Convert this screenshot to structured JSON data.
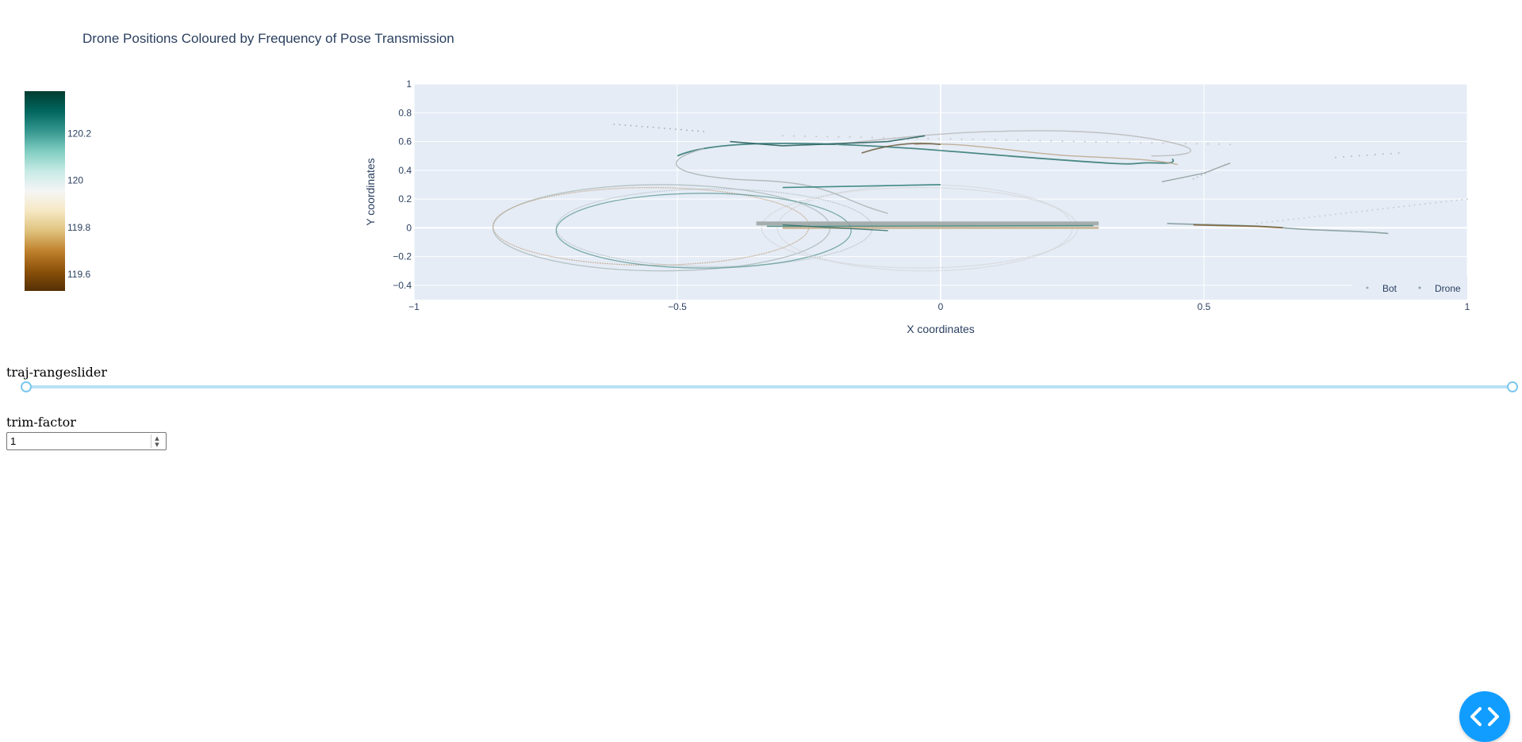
{
  "figure": {
    "title": "Drone Positions Coloured by Frequency of Pose Transmission"
  },
  "colorbar": {
    "ticks": [
      "120.2",
      "120",
      "119.8",
      "119.6"
    ],
    "tick_values": [
      120.2,
      120.0,
      119.8,
      119.6
    ],
    "range": [
      119.53,
      120.38
    ],
    "colors": [
      "#003c30",
      "#01665e",
      "#35978f",
      "#80cdc1",
      "#c7eae5",
      "#f5f5f5",
      "#f6e8c3",
      "#dfc27d",
      "#bf812d",
      "#8c510a",
      "#543005"
    ]
  },
  "chart_data": {
    "type": "scatter",
    "title": "Drone Positions Coloured by Frequency of Pose Transmission",
    "xlabel": "X coordinates",
    "ylabel": "Y coordinates",
    "xlim": [
      -1,
      1
    ],
    "ylim": [
      -0.5,
      1
    ],
    "x_ticks": [
      "−1",
      "−0.5",
      "0",
      "0.5",
      "1"
    ],
    "x_tick_values": [
      -1,
      -0.5,
      0,
      0.5,
      1
    ],
    "y_ticks": [
      "1",
      "0.8",
      "0.6",
      "0.4",
      "0.2",
      "0",
      "−0.2",
      "−0.4"
    ],
    "y_tick_values": [
      1,
      0.8,
      0.6,
      0.4,
      0.2,
      0,
      -0.2,
      -0.4
    ],
    "grid": true,
    "legend_position": "bottom-right",
    "series": [
      {
        "name": "Bot",
        "color": "#aaaaaa",
        "shape": "ellipses-and-line"
      },
      {
        "name": "Drone",
        "color": "#8aa0a0",
        "shape": "wandering-path"
      }
    ]
  },
  "controls": {
    "slider_label": "traj-rangeslider",
    "slider_range": [
      0,
      1
    ],
    "trim_label": "trim-factor",
    "trim_value": "1"
  },
  "fab": {
    "icon": "code-icon"
  }
}
